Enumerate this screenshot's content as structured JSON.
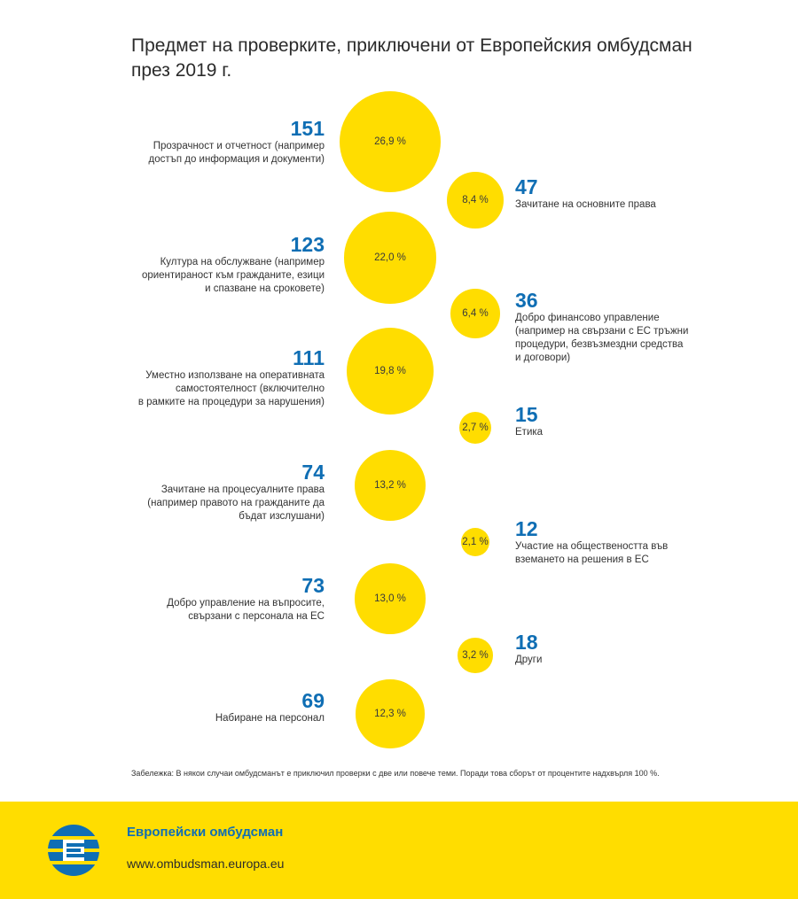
{
  "title": {
    "line1": "Предмет на проверките, приключени от Европейския омбудсман",
    "line2": "през 2019 г."
  },
  "chart_data": {
    "type": "bubble",
    "items": [
      {
        "count": 151,
        "pct": "26,9 %",
        "value": 26.9,
        "side": "left",
        "label": "Прозрачност и отчетност (например\nдостъп до информация и документи)"
      },
      {
        "count": 47,
        "pct": "8,4 %",
        "value": 8.4,
        "side": "right",
        "label": "Зачитане на основните права"
      },
      {
        "count": 123,
        "pct": "22,0 %",
        "value": 22.0,
        "side": "left",
        "label": "Култура на обслужване (например\nориентираност към гражданите, езици\nи спазване на сроковете)"
      },
      {
        "count": 36,
        "pct": "6,4 %",
        "value": 6.4,
        "side": "right",
        "label": "Добро финансово управление\n(например на свързани с ЕС тръжни\nпроцедури, безвъзмездни средства\nи договори)"
      },
      {
        "count": 111,
        "pct": "19,8 %",
        "value": 19.8,
        "side": "left",
        "label": "Уместно използване на оперативната\nсамостоятелност (включително\nв рамките на процедури за нарушения)"
      },
      {
        "count": 15,
        "pct": "2,7 %",
        "value": 2.7,
        "side": "right",
        "label": "Етика"
      },
      {
        "count": 74,
        "pct": "13,2 %",
        "value": 13.2,
        "side": "left",
        "label": "Зачитане на процесуалните права\n(например правото на гражданите да\nбъдат изслушани)"
      },
      {
        "count": 12,
        "pct": "2,1 %",
        "value": 2.1,
        "side": "right",
        "label": "Участие на обществеността във\nвземането на решения в ЕС"
      },
      {
        "count": 73,
        "pct": "13,0 %",
        "value": 13.0,
        "side": "left",
        "label": "Добро управление на въпросите,\nсвързани с персонала на ЕС"
      },
      {
        "count": 18,
        "pct": "3,2 %",
        "value": 3.2,
        "side": "right",
        "label": "Други"
      },
      {
        "count": 69,
        "pct": "12,3 %",
        "value": 12.3,
        "side": "left",
        "label": "Набиране на персонал"
      }
    ]
  },
  "note": "Забележка: В някои случаи омбудсманът е приключил проверки с две или повече теми. Поради това сборът от процентите надхвърля 100 %.",
  "footer": {
    "brand": "Европейски омбудсман",
    "url": "www.ombudsman.europa.eu"
  },
  "colors": {
    "bubble": "#ffdd00",
    "number": "#0f6eb4",
    "footer_bg": "#ffdd00",
    "brand": "#0f6eb4"
  },
  "icons": {
    "logo": "european-ombudsman-logo"
  }
}
